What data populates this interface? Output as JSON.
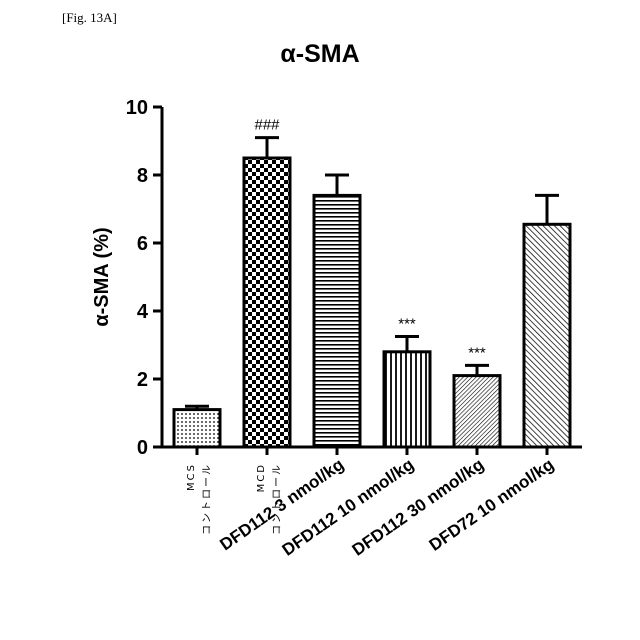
{
  "figure_label": "[Fig. 13A]",
  "chart_data": {
    "type": "bar",
    "title": "α-SMA",
    "xlabel": "",
    "ylabel": "α-SMA (%)",
    "ylim": [
      0,
      10
    ],
    "yticks": [
      "0",
      "2",
      "4",
      "6",
      "8",
      "10"
    ],
    "categories": [
      "MCS\nコントロール",
      "MCD\nコントロール",
      "DFD112 3 nmol/kg",
      "DFD112 10 nmol/kg",
      "DFD112 30 nmol/kg",
      "DFD72 10 nmol/kg"
    ],
    "values": [
      1.1,
      8.5,
      7.4,
      2.8,
      2.1,
      6.55
    ],
    "errors": [
      0.1,
      0.6,
      0.6,
      0.45,
      0.3,
      0.85
    ],
    "annotations": [
      "",
      "###",
      "",
      "***",
      "***",
      ""
    ],
    "patterns": [
      "dots",
      "checker",
      "hlines",
      "vlines",
      "diag-fine",
      "diag"
    ],
    "colors": {
      "bar_stroke": "#000000",
      "pattern": "#000000",
      "background": "#ffffff"
    }
  }
}
